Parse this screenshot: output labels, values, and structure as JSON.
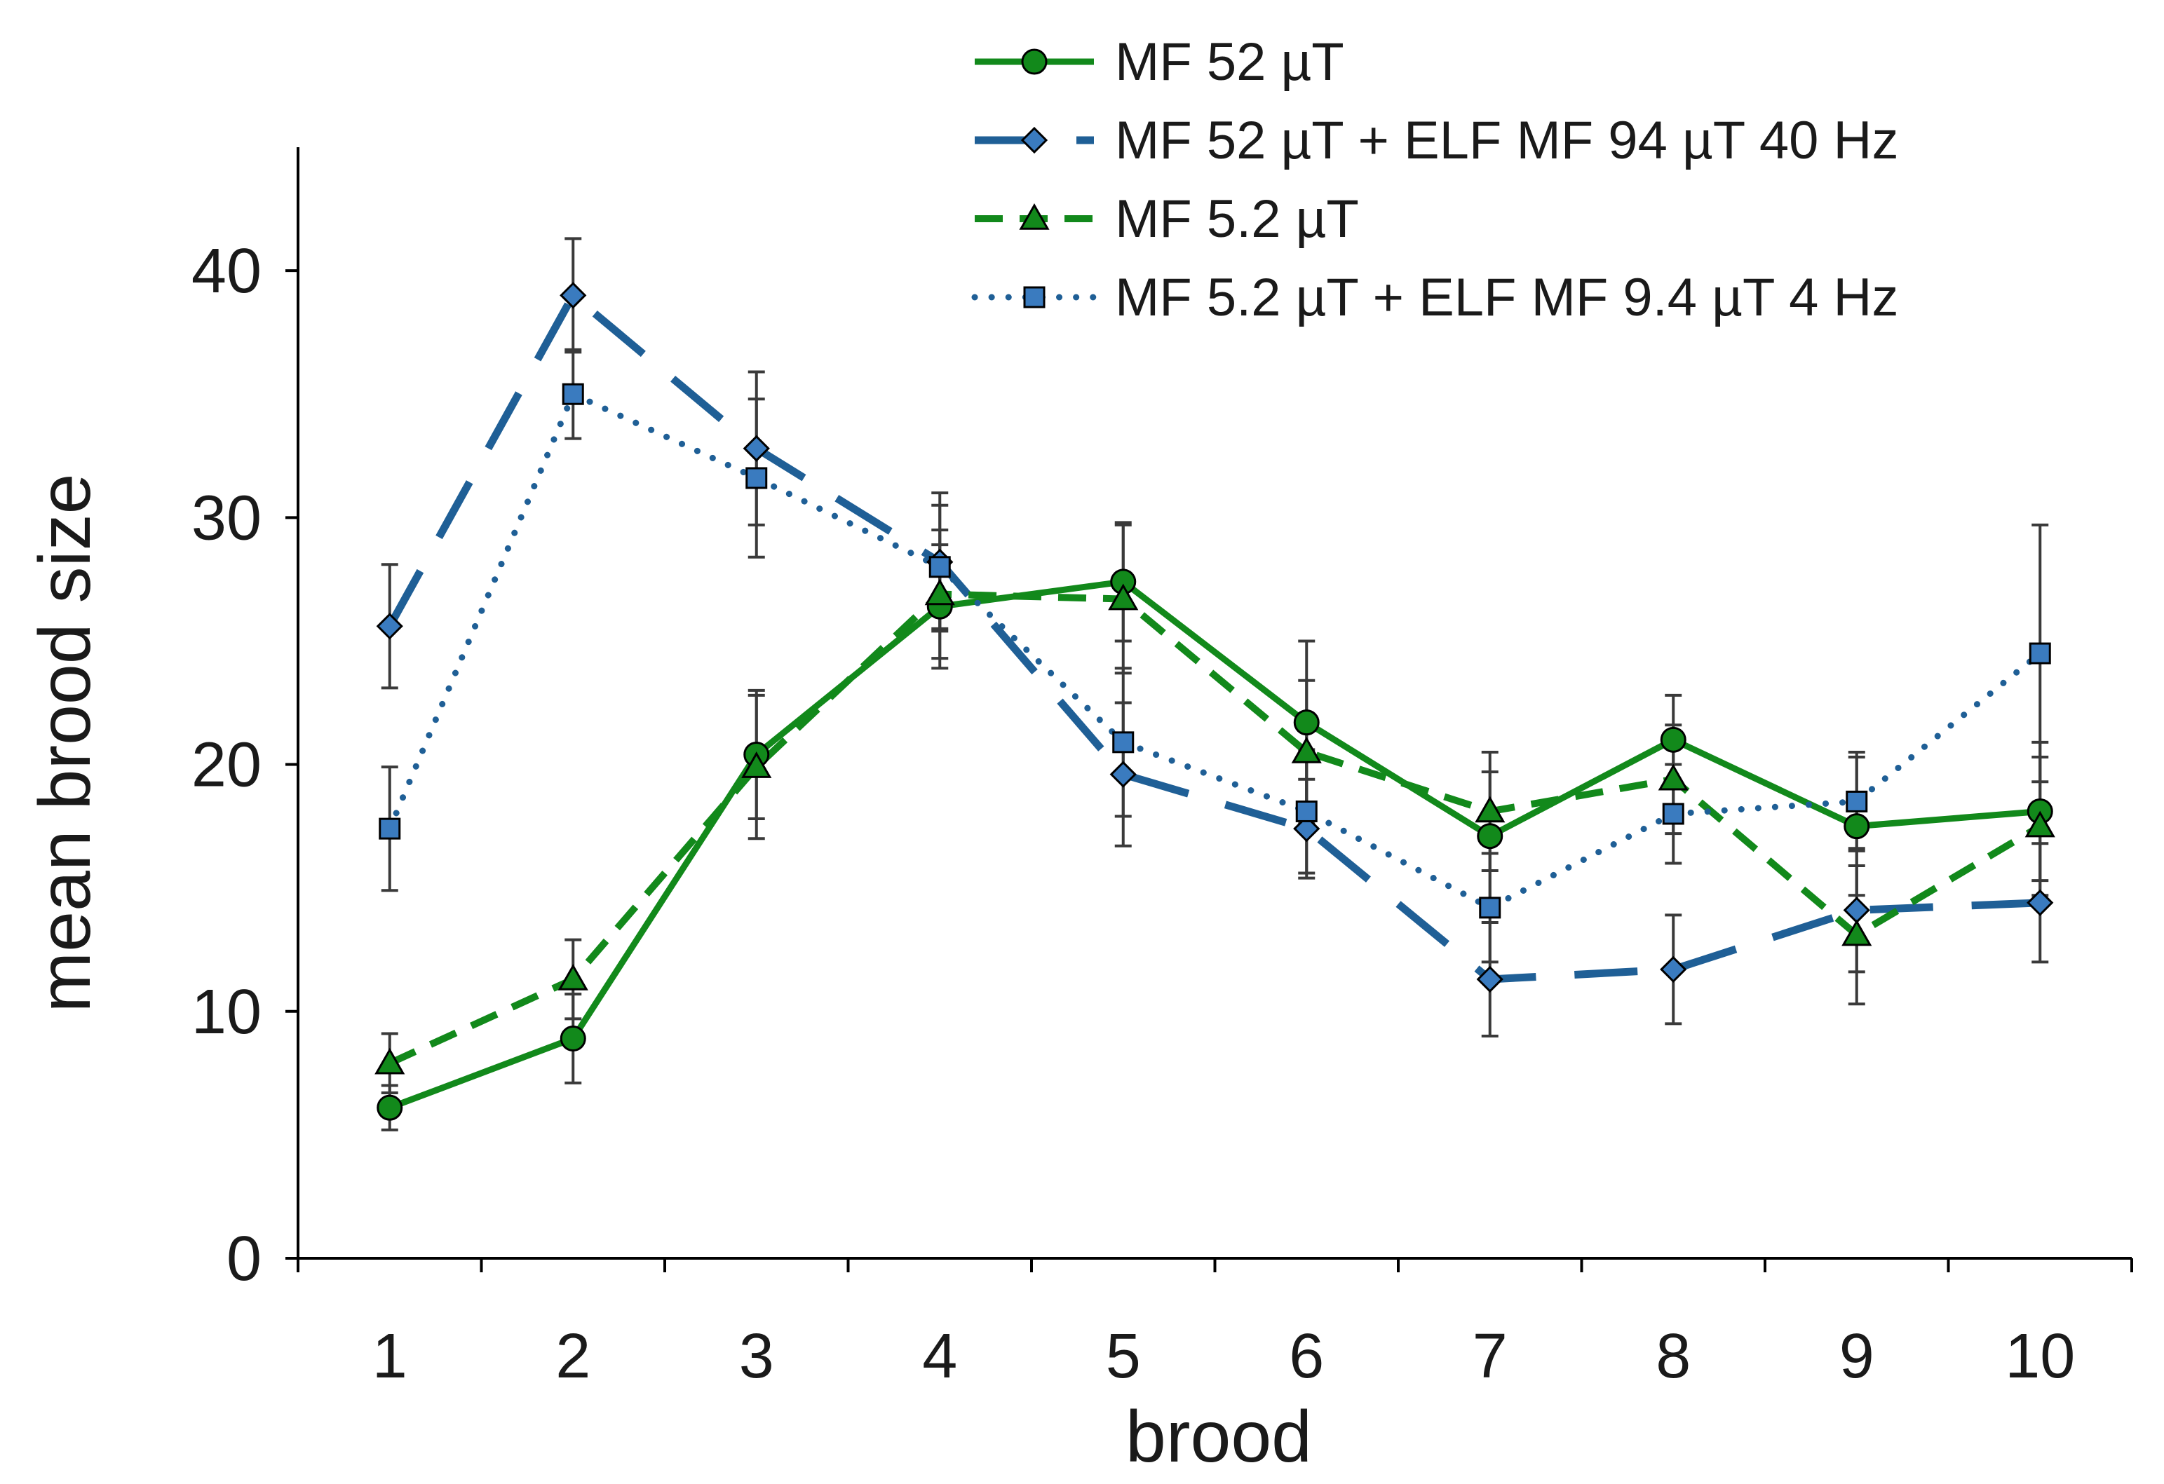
{
  "chart_data": {
    "type": "line",
    "title": "",
    "xlabel": "brood",
    "ylabel": "mean brood size",
    "x": [
      1,
      2,
      3,
      4,
      5,
      6,
      7,
      8,
      9,
      10
    ],
    "xtick_labels": [
      "1",
      "2",
      "3",
      "4",
      "5",
      "6",
      "7",
      "8",
      "9",
      "10"
    ],
    "ylim": [
      0,
      45
    ],
    "yticks": [
      0,
      10,
      20,
      30,
      40
    ],
    "ytick_labels": [
      "0",
      "10",
      "20",
      "30",
      "40"
    ],
    "grid": false,
    "legend_position": "top-center",
    "series": [
      {
        "name": "MF 52 µT",
        "color": "#12891b",
        "marker_fill": "#12891b",
        "line_style": "solid",
        "marker": "circle",
        "values": [
          6.1,
          8.9,
          20.4,
          26.4,
          27.4,
          21.7,
          17.1,
          21.0,
          17.5,
          18.1
        ],
        "errors": [
          0.9,
          1.8,
          2.6,
          2.5,
          2.4,
          3.3,
          2.6,
          1.8,
          2.8,
          2.8
        ]
      },
      {
        "name": "MF 52 µT + ELF MF 94 µT 40 Hz",
        "color": "#1f5f96",
        "marker_fill": "#3a7bbf",
        "line_style": "long-dash",
        "marker": "diamond",
        "values": [
          25.6,
          39.0,
          32.8,
          28.2,
          19.6,
          17.4,
          11.3,
          11.7,
          14.1,
          14.4
        ],
        "errors": [
          2.5,
          2.3,
          3.1,
          2.8,
          2.9,
          2.0,
          2.3,
          2.2,
          2.5,
          2.4
        ]
      },
      {
        "name": "MF 5.2 µT",
        "color": "#12891b",
        "marker_fill": "#12891b",
        "line_style": "dash",
        "marker": "triangle",
        "values": [
          7.9,
          11.3,
          19.9,
          26.9,
          26.7,
          20.5,
          18.1,
          19.4,
          13.1,
          17.5
        ],
        "errors": [
          1.2,
          1.6,
          2.9,
          2.6,
          3.0,
          2.9,
          2.4,
          2.2,
          2.8,
          2.8
        ]
      },
      {
        "name": "MF 5.2 µT + ELF MF 9.4 µT 4 Hz",
        "color": "#1f5f96",
        "marker_fill": "#3a7bbf",
        "line_style": "dot",
        "marker": "square",
        "values": [
          17.4,
          35.0,
          31.6,
          28.0,
          20.9,
          18.1,
          14.2,
          18.0,
          18.5,
          24.5
        ],
        "errors": [
          2.5,
          1.8,
          3.2,
          2.5,
          3.0,
          2.5,
          2.2,
          2.0,
          2.0,
          5.2
        ]
      }
    ]
  }
}
